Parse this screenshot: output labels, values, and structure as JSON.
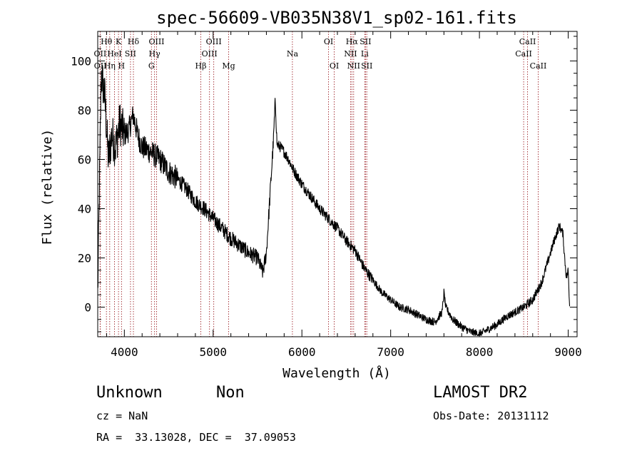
{
  "chart_data": {
    "type": "line",
    "title": "spec-56609-VB035N38V1_sp02-161.fits",
    "xlabel": "Wavelength (Å)",
    "ylabel": "Flux (relative)",
    "xlim": [
      3700,
      9100
    ],
    "ylim": [
      -12,
      112
    ],
    "x_ticks": [
      4000,
      5000,
      6000,
      7000,
      8000,
      9000
    ],
    "y_ticks": [
      0,
      20,
      40,
      60,
      80,
      100
    ],
    "x_tick_labels": [
      "4000",
      "5000",
      "6000",
      "7000",
      "8000",
      "9000"
    ],
    "y_tick_labels": [
      "0",
      "20",
      "40",
      "60",
      "80",
      "100"
    ],
    "grid": false,
    "series": [
      {
        "x": [
          3700,
          3740,
          3780,
          3820,
          3860,
          3900,
          3950,
          4000,
          4050,
          4100,
          4150,
          4200,
          4300,
          4400,
          4500,
          4600,
          4700,
          4800,
          4900,
          5000,
          5100,
          5200,
          5300,
          5400,
          5500,
          5560,
          5600,
          5640,
          5680,
          5700,
          5720,
          5760,
          5800,
          5850,
          5900,
          6000,
          6100,
          6200,
          6300,
          6400,
          6500,
          6550,
          6600,
          6700,
          6800,
          6900,
          7000,
          7100,
          7200,
          7300,
          7400,
          7500,
          7580,
          7600,
          7620,
          7700,
          7800,
          7900,
          8000,
          8100,
          8200,
          8300,
          8400,
          8500,
          8600,
          8700,
          8800,
          8850,
          8900,
          8940,
          8960,
          8980,
          9000,
          9010,
          9020
        ],
        "y": [
          5,
          95,
          85,
          60,
          70,
          65,
          75,
          70,
          72,
          78,
          70,
          65,
          63,
          60,
          55,
          52,
          48,
          43,
          40,
          36,
          32,
          28,
          25,
          22,
          20,
          14,
          22,
          45,
          68,
          84,
          66,
          65,
          63,
          60,
          56,
          50,
          45,
          40,
          36,
          32,
          27,
          25,
          23,
          16,
          11,
          6,
          3,
          0,
          -1,
          -3,
          -5,
          -6,
          -2,
          6,
          0,
          -5,
          -8,
          -10,
          -11,
          -9,
          -7,
          -4,
          -2,
          0,
          3,
          10,
          22,
          28,
          33,
          30,
          20,
          12,
          15,
          5,
          0
        ]
      }
    ],
    "lines": [
      {
        "label": "Hθ",
        "x": 3798,
        "row": 1
      },
      {
        "label": "OII",
        "x": 3727,
        "row": 2
      },
      {
        "label": "OII",
        "x": 3729,
        "row": 3
      },
      {
        "label": "HeI",
        "x": 3889,
        "row": 2
      },
      {
        "label": "Hη",
        "x": 3835,
        "row": 3
      },
      {
        "label": "K",
        "x": 3934,
        "row": 1
      },
      {
        "label": "H",
        "x": 3968,
        "row": 3
      },
      {
        "label": "SII",
        "x": 4069,
        "row": 2
      },
      {
        "label": "Hδ",
        "x": 4102,
        "row": 1
      },
      {
        "label": "OIII",
        "x": 4363,
        "row": 1
      },
      {
        "label": "Hγ",
        "x": 4340,
        "row": 2
      },
      {
        "label": "G",
        "x": 4305,
        "row": 3
      },
      {
        "label": "Hβ",
        "x": 4861,
        "row": 3
      },
      {
        "label": "OIII",
        "x": 5007,
        "row": 1
      },
      {
        "label": "OIII",
        "x": 4959,
        "row": 2
      },
      {
        "label": "Mg",
        "x": 5175,
        "row": 3
      },
      {
        "label": "Na",
        "x": 5893,
        "row": 2
      },
      {
        "label": "OI",
        "x": 6300,
        "row": 1
      },
      {
        "label": "OI",
        "x": 6364,
        "row": 3
      },
      {
        "label": "Hα",
        "x": 6563,
        "row": 1
      },
      {
        "label": "NII",
        "x": 6548,
        "row": 2
      },
      {
        "label": "NII",
        "x": 6583,
        "row": 3
      },
      {
        "label": "SII",
        "x": 6716,
        "row": 1
      },
      {
        "label": "Li",
        "x": 6708,
        "row": 2
      },
      {
        "label": "SII",
        "x": 6731,
        "row": 3
      },
      {
        "label": "CaII",
        "x": 8542,
        "row": 1
      },
      {
        "label": "CaII",
        "x": 8498,
        "row": 2
      },
      {
        "label": "CaII",
        "x": 8662,
        "row": 3
      }
    ]
  },
  "info": {
    "object_class": "Unknown",
    "subclass": "Non",
    "survey": "LAMOST DR2",
    "redshift": "cz = NaN",
    "obs_date": "Obs-Date: 20131112",
    "coords": "RA =  33.13028, DEC =  37.09053"
  }
}
